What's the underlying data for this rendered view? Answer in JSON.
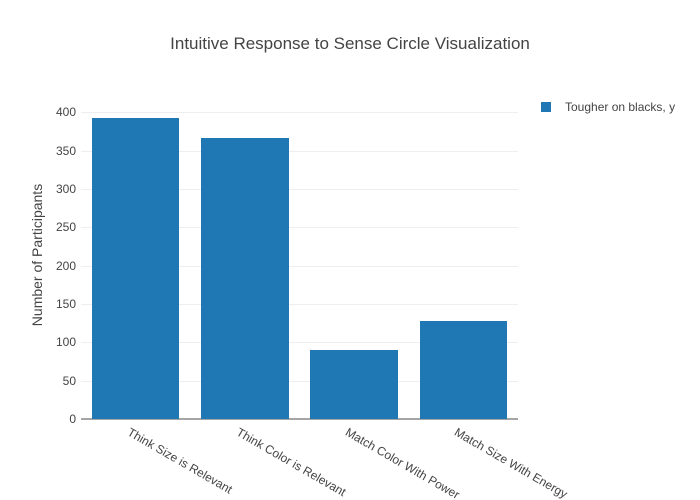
{
  "title": "Intuitive Response to Sense Circle Visualization",
  "legend": {
    "items": [
      {
        "label": "Tougher on blacks, y",
        "color": "#1f77b4"
      }
    ]
  },
  "colors": {
    "bar": "#1f77b4",
    "grid": "#eeeeee",
    "axis": "#a5a5a5",
    "text": "#444444",
    "background": "#ffffff"
  },
  "chart_data": {
    "type": "bar",
    "title": "Intuitive Response to Sense Circle Visualization",
    "series_name": "Tougher on blacks, y",
    "categories": [
      "Think Size is Relevant",
      "Think Color is Relevant",
      "Match Color With Power",
      "Match Size With Energy"
    ],
    "values": [
      393,
      366,
      90,
      128
    ],
    "xlabel": "",
    "ylabel": "Number of Participants",
    "ylim": [
      0,
      416
    ],
    "yticks": [
      0,
      50,
      100,
      150,
      200,
      250,
      300,
      350,
      400
    ],
    "grid": true,
    "legend_position": "top-right",
    "bar_color": "#1f77b4",
    "x_tick_angle_deg": 30
  }
}
